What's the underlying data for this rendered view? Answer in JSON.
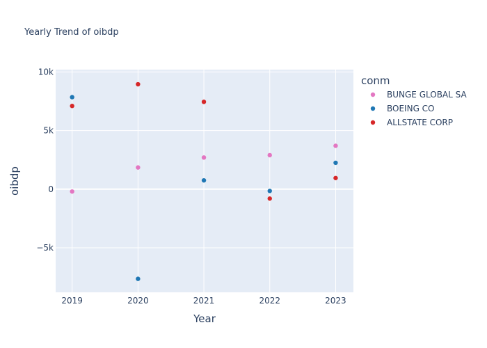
{
  "chart_data": {
    "type": "scatter",
    "title": "Yearly Trend of oibdp",
    "xlabel": "Year",
    "ylabel": "oibdp",
    "x": [
      2019,
      2020,
      2021,
      2022,
      2023
    ],
    "x_tick_labels": [
      "2019",
      "2020",
      "2021",
      "2022",
      "2023"
    ],
    "ylim": [
      -8800,
      10200
    ],
    "y_ticks": [
      10000,
      5000,
      0,
      -5000
    ],
    "y_tick_labels": [
      "10k",
      "5k",
      "0",
      "−5k"
    ],
    "grid": true,
    "legend_title": "conm",
    "legend_position": "right",
    "series": [
      {
        "name": "BUNGE GLOBAL SA",
        "color": "#e377c2",
        "values": [
          -200,
          1850,
          2700,
          2900,
          3700
        ]
      },
      {
        "name": "BOEING CO",
        "color": "#1f77b4",
        "values": [
          7850,
          -7650,
          750,
          -150,
          2250
        ]
      },
      {
        "name": "ALLSTATE CORP",
        "color": "#d62728",
        "values": [
          7100,
          8950,
          7450,
          -800,
          950
        ]
      }
    ]
  }
}
